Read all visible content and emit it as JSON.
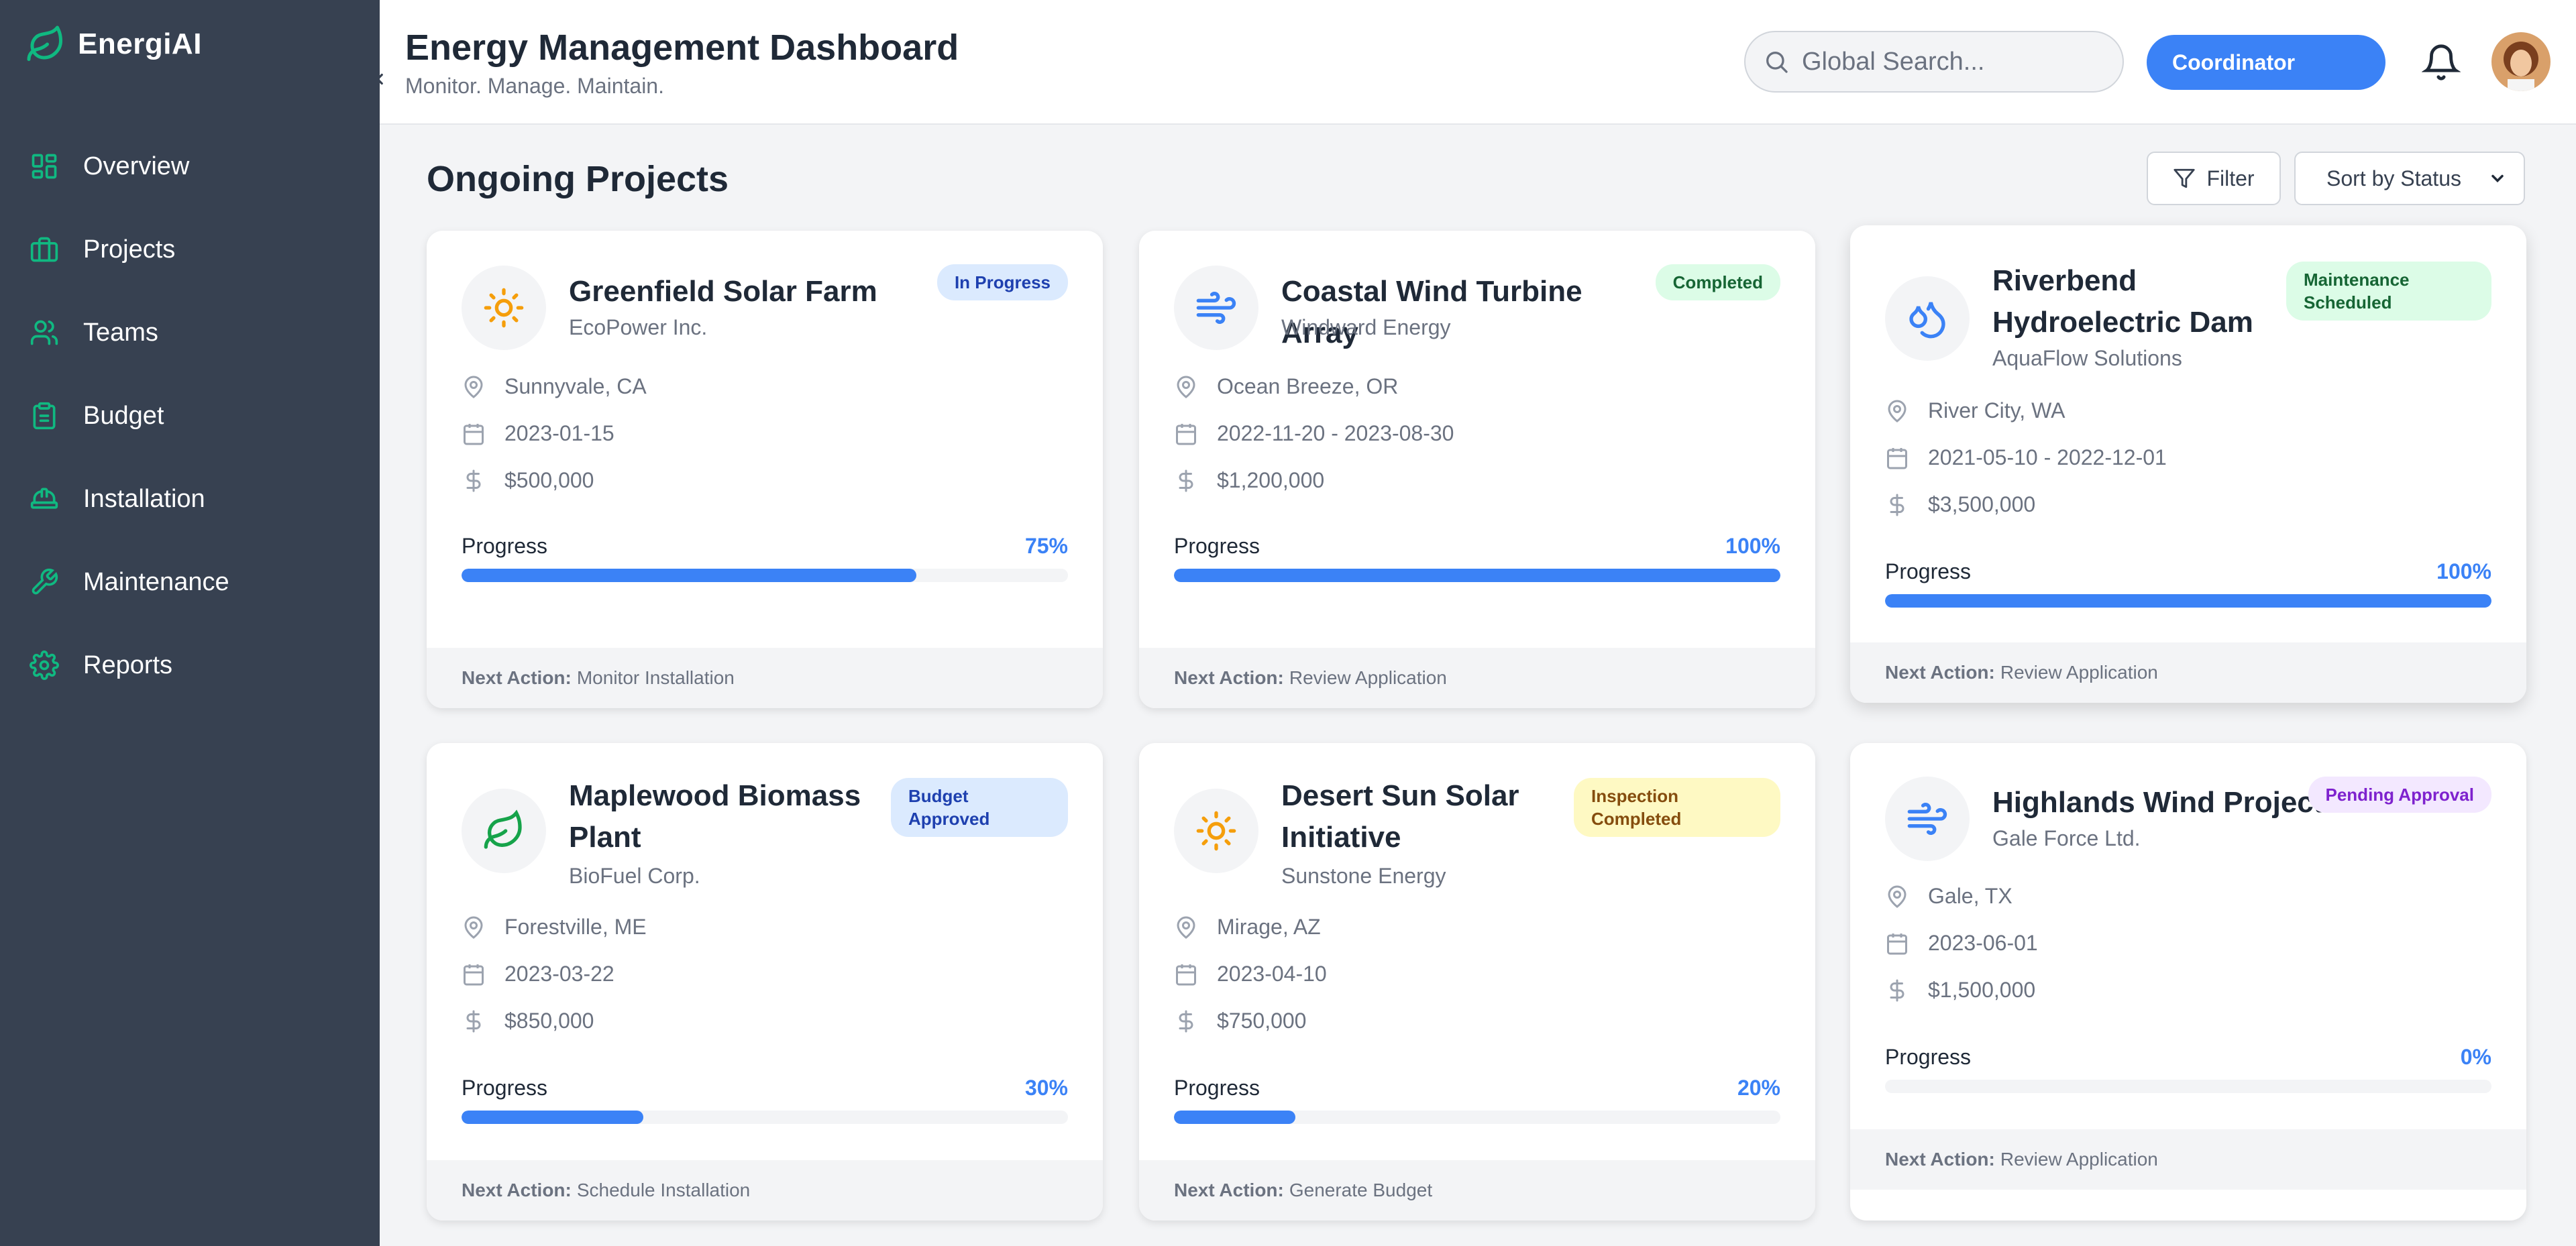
{
  "app": {
    "brand": "EnergiAI"
  },
  "sidebar": {
    "items": [
      {
        "label": "Overview",
        "icon": "grid-icon"
      },
      {
        "label": "Projects",
        "icon": "briefcase-icon"
      },
      {
        "label": "Teams",
        "icon": "users-icon"
      },
      {
        "label": "Budget",
        "icon": "clipboard-icon"
      },
      {
        "label": "Installation",
        "icon": "hardhat-icon"
      },
      {
        "label": "Maintenance",
        "icon": "wrench-icon"
      },
      {
        "label": "Reports",
        "icon": "gear-icon"
      }
    ]
  },
  "header": {
    "title": "Energy Management Dashboard",
    "subtitle": "Monitor. Manage. Maintain.",
    "search_placeholder": "Global Search...",
    "role": "Coordinator"
  },
  "main": {
    "section_title": "Ongoing Projects",
    "filter_label": "Filter",
    "sort_label": "Sort by Status",
    "progress_label": "Progress",
    "next_action_label": "Next Action:"
  },
  "projects": [
    {
      "title": "Greenfield Solar Farm",
      "company": "EcoPower Inc.",
      "status": "In Progress",
      "location": "Sunnyvale, CA",
      "date": "2023-01-15",
      "budget": "$500,000",
      "progress": 75,
      "progress_text": "75%",
      "next_action": "Monitor Installation",
      "icon": "sun-icon"
    },
    {
      "title": "Coastal Wind Turbine Array",
      "company": "Windward Energy",
      "status": "Completed",
      "location": "Ocean Breeze, OR",
      "date": "2022-11-20 - 2023-08-30",
      "budget": "$1,200,000",
      "progress": 100,
      "progress_text": "100%",
      "next_action": "Review Application",
      "icon": "wind-icon"
    },
    {
      "title": "Riverbend Hydroelectric Dam",
      "company": "AquaFlow Solutions",
      "status": "Maintenance Scheduled",
      "location": "River City, WA",
      "date": "2021-05-10 - 2022-12-01",
      "budget": "$3,500,000",
      "progress": 100,
      "progress_text": "100%",
      "next_action": "Review Application",
      "icon": "droplets-icon"
    },
    {
      "title": "Maplewood Biomass Plant",
      "company": "BioFuel Corp.",
      "status": "Budget Approved",
      "location": "Forestville, ME",
      "date": "2023-03-22",
      "budget": "$850,000",
      "progress": 30,
      "progress_text": "30%",
      "next_action": "Schedule Installation",
      "icon": "leaf-icon"
    },
    {
      "title": "Desert Sun Solar Initiative",
      "company": "Sunstone Energy",
      "status": "Inspection Completed",
      "location": "Mirage, AZ",
      "date": "2023-04-10",
      "budget": "$750,000",
      "progress": 20,
      "progress_text": "20%",
      "next_action": "Generate Budget",
      "icon": "sun-icon"
    },
    {
      "title": "Highlands Wind Project",
      "company": "Gale Force Ltd.",
      "status": "Pending Approval",
      "location": "Gale, TX",
      "date": "2023-06-01",
      "budget": "$1,500,000",
      "progress": 0,
      "progress_text": "0%",
      "next_action": "Review Application",
      "icon": "wind-icon"
    }
  ],
  "colors": {
    "sidebar_bg": "#374151",
    "accent": "#3b82f6",
    "brand_green": "#10b981",
    "status_in_progress_bg": "#dbeafe",
    "status_completed_bg": "#dcfce7",
    "status_inspection_bg": "#fef9c3",
    "status_pending_bg": "#f3e8ff"
  }
}
